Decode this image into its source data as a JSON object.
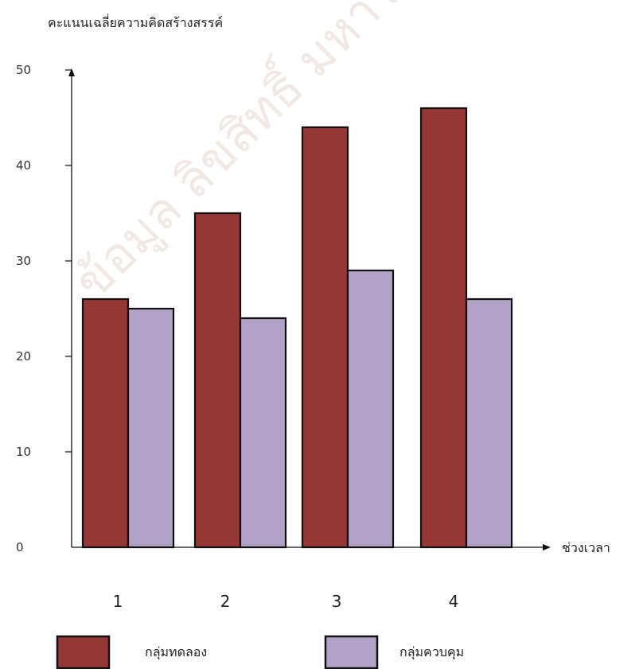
{
  "chart_data": {
    "type": "bar",
    "ylabel": "คะแนนเฉลี่ยความคิดสร้างสรรค์",
    "xlabel": "ช่วงเวลา",
    "categories": [
      "1",
      "2",
      "3",
      "4"
    ],
    "y_ticks": [
      "0",
      "10",
      "20",
      "30",
      "40",
      "50"
    ],
    "ylim": [
      0,
      50
    ],
    "grid": false,
    "legend_position": "bottom",
    "series": [
      {
        "name": "กลุ่มทดลอง",
        "color": "#953735",
        "values": [
          26,
          35,
          44,
          46
        ]
      },
      {
        "name": "กลุ่มควบคุม",
        "color": "#b3a2c7",
        "values": [
          25,
          24,
          29,
          26
        ]
      }
    ]
  }
}
